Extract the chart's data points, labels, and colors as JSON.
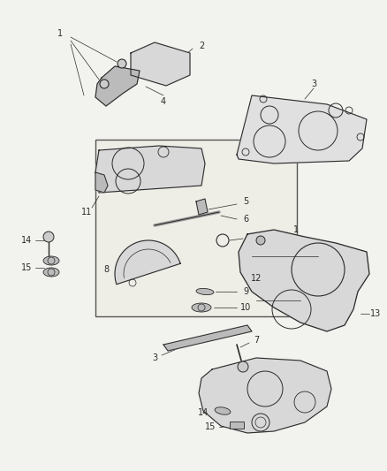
{
  "background_color": "#f2f2ee",
  "figsize": [
    4.39,
    5.33
  ],
  "dpi": 100,
  "line_color": "#2a2a2a",
  "fill_light": "#d8d8d8",
  "fill_mid": "#bbbbbb",
  "fill_dark": "#999999"
}
